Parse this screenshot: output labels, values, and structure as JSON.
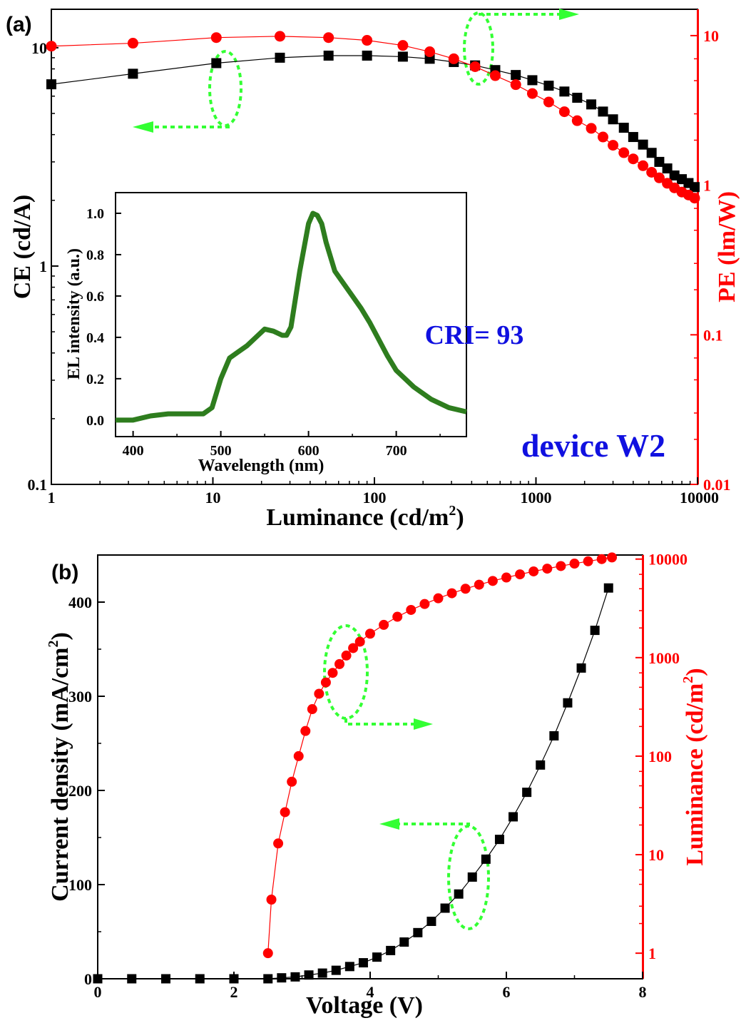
{
  "colors": {
    "black": "#000000",
    "red": "#ff0000",
    "green": "#2e7d1e",
    "blue": "#1010e0",
    "guide": "#33ff33"
  },
  "chart_data": [
    {
      "type": "scatter",
      "panel_label": "(a)",
      "xlabel": "Luminance (cd/m",
      "xlabel_sup": "2",
      "xlabel_end": ")",
      "ylabel": "CE (cd/A)",
      "y2label": "PE (lm/W)",
      "xscale": "log",
      "yscale": "log",
      "y2scale": "log",
      "xlim": [
        1,
        10000
      ],
      "ylim": [
        0.1,
        15
      ],
      "y2lim": [
        0.01,
        15
      ],
      "xticks": [
        "1",
        "10",
        "100",
        "1000",
        "10000"
      ],
      "yticks": [
        "0.1",
        "1",
        "10"
      ],
      "y2ticks": [
        "0.01",
        "0.1",
        "1",
        "10"
      ],
      "series": [
        {
          "axis": "left",
          "color": "#000000",
          "marker": "square",
          "x": [
            1.0,
            3.2,
            10.5,
            26,
            52,
            90,
            150,
            220,
            310,
            420,
            560,
            750,
            950,
            1200,
            1500,
            1800,
            2200,
            2600,
            3000,
            3500,
            4000,
            4600,
            5200,
            5800,
            6500,
            7200,
            8000,
            8800,
            9600
          ],
          "y": [
            6.8,
            7.6,
            8.5,
            9.0,
            9.2,
            9.2,
            9.1,
            8.9,
            8.6,
            8.3,
            7.9,
            7.5,
            7.1,
            6.7,
            6.3,
            5.9,
            5.5,
            5.1,
            4.7,
            4.3,
            3.9,
            3.6,
            3.3,
            3.0,
            2.8,
            2.6,
            2.5,
            2.4,
            2.3
          ]
        },
        {
          "axis": "right",
          "color": "#ff0000",
          "marker": "circle",
          "x": [
            1.0,
            3.2,
            10.5,
            26,
            52,
            90,
            150,
            220,
            310,
            420,
            560,
            750,
            950,
            1200,
            1500,
            1800,
            2200,
            2600,
            3000,
            3500,
            4000,
            4600,
            5200,
            5800,
            6500,
            7200,
            8000,
            8800,
            9600
          ],
          "y": [
            8.5,
            8.9,
            9.7,
            9.9,
            9.7,
            9.3,
            8.6,
            7.8,
            7.0,
            6.2,
            5.4,
            4.7,
            4.1,
            3.6,
            3.1,
            2.7,
            2.4,
            2.1,
            1.85,
            1.65,
            1.5,
            1.35,
            1.22,
            1.12,
            1.03,
            0.96,
            0.9,
            0.86,
            0.82
          ]
        }
      ],
      "annotations": [
        {
          "text": "device W2",
          "color": "#1010e0"
        }
      ]
    },
    {
      "type": "line",
      "role": "inset",
      "xlabel": "Wavelength (nm)",
      "ylabel": "EL intensity (a.u.)",
      "xlim": [
        380,
        780
      ],
      "ylim": [
        -0.08,
        1.1
      ],
      "xticks": [
        "400",
        "500",
        "600",
        "700"
      ],
      "yticks": [
        "0.0",
        "0.2",
        "0.4",
        "0.6",
        "0.8",
        "1.0"
      ],
      "series": [
        {
          "color": "#2e7d1e",
          "x": [
            380,
            400,
            420,
            440,
            460,
            480,
            490,
            500,
            510,
            520,
            530,
            540,
            550,
            560,
            570,
            575,
            580,
            590,
            600,
            605,
            610,
            615,
            620,
            630,
            640,
            650,
            660,
            670,
            680,
            690,
            700,
            720,
            740,
            760,
            780
          ],
          "y": [
            0.0,
            0.0,
            0.02,
            0.03,
            0.03,
            0.03,
            0.06,
            0.2,
            0.3,
            0.33,
            0.36,
            0.4,
            0.44,
            0.43,
            0.41,
            0.41,
            0.45,
            0.72,
            0.95,
            1.0,
            0.99,
            0.95,
            0.86,
            0.72,
            0.66,
            0.6,
            0.54,
            0.47,
            0.39,
            0.31,
            0.24,
            0.16,
            0.1,
            0.06,
            0.04
          ]
        }
      ],
      "annotations": [
        {
          "text": "CRI= 93",
          "color": "#1010e0"
        }
      ]
    },
    {
      "type": "scatter",
      "panel_label": "(b)",
      "xlabel": "Voltage (V)",
      "ylabel": "Current density (mA/cm",
      "ylabel_sup": "2",
      "ylabel_end": ")",
      "y2label": "Luminance (cd/m",
      "y2label_sup": "2",
      "y2label_end": ")",
      "xlim": [
        0,
        8
      ],
      "ylim": [
        0,
        450
      ],
      "y2lim": [
        0.55,
        11000
      ],
      "y2scale": "log",
      "xticks": [
        "0",
        "2",
        "4",
        "6",
        "8"
      ],
      "yticks": [
        "0",
        "100",
        "200",
        "300",
        "400"
      ],
      "y2ticks": [
        "1",
        "10",
        "100",
        "1000",
        "10000"
      ],
      "series": [
        {
          "axis": "left",
          "color": "#000000",
          "marker": "square",
          "x": [
            0.0,
            0.5,
            1.0,
            1.5,
            2.0,
            2.5,
            2.7,
            2.9,
            3.1,
            3.3,
            3.5,
            3.7,
            3.9,
            4.1,
            4.3,
            4.5,
            4.7,
            4.9,
            5.1,
            5.3,
            5.5,
            5.7,
            5.9,
            6.1,
            6.3,
            6.5,
            6.7,
            6.9,
            7.1,
            7.3,
            7.5
          ],
          "y": [
            0,
            0,
            0,
            0,
            0,
            0,
            1,
            2,
            4,
            6,
            9,
            13,
            17,
            23,
            30,
            39,
            49,
            61,
            75,
            90,
            108,
            127,
            148,
            172,
            198,
            227,
            258,
            293,
            330,
            370,
            415
          ]
        },
        {
          "axis": "right",
          "color": "#ff0000",
          "marker": "circle",
          "x": [
            2.5,
            2.55,
            2.65,
            2.75,
            2.85,
            2.95,
            3.05,
            3.15,
            3.25,
            3.35,
            3.45,
            3.55,
            3.65,
            3.75,
            3.85,
            4.0,
            4.2,
            4.4,
            4.6,
            4.8,
            5.0,
            5.2,
            5.4,
            5.6,
            5.8,
            6.0,
            6.2,
            6.4,
            6.6,
            6.8,
            7.0,
            7.2,
            7.4,
            7.55
          ],
          "y": [
            1.0,
            3.5,
            13,
            27,
            55,
            100,
            180,
            300,
            430,
            560,
            700,
            860,
            1050,
            1250,
            1450,
            1750,
            2150,
            2600,
            3050,
            3500,
            4000,
            4500,
            5000,
            5500,
            6000,
            6500,
            7000,
            7500,
            8000,
            8500,
            9000,
            9500,
            10000,
            10400
          ]
        }
      ]
    }
  ]
}
